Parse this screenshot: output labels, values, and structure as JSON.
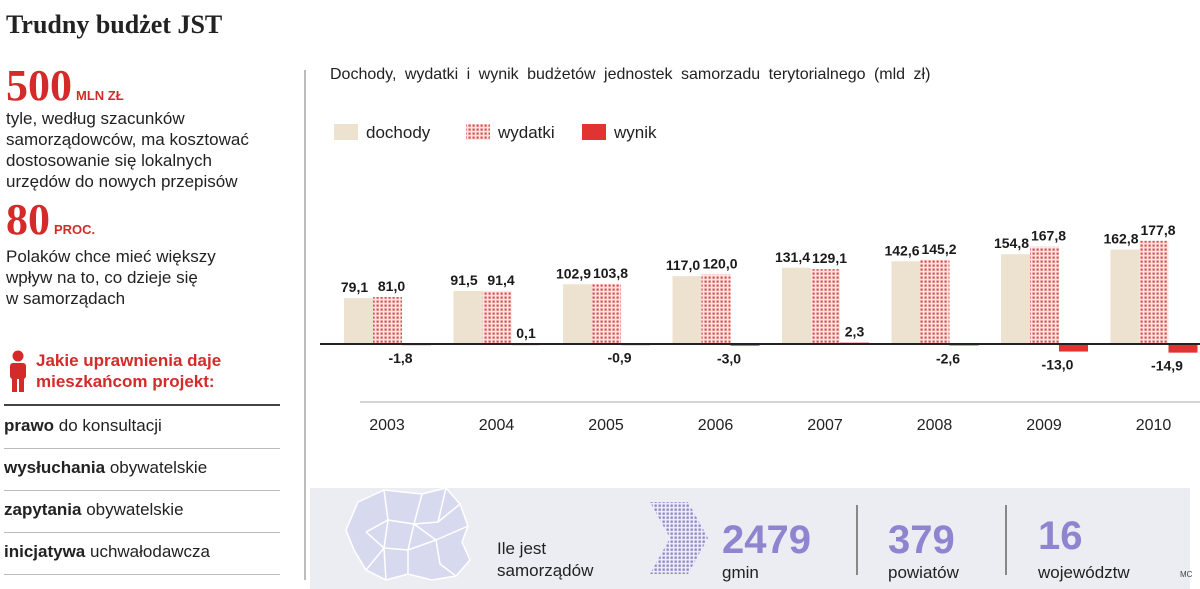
{
  "title": "Trudny budżet JST",
  "stats": [
    {
      "number": "500",
      "unit": "MLN ZŁ",
      "desc": [
        "tyle, według szacunków",
        "samorządowców, ma kosztować",
        "dostosowanie się lokalnych",
        "urzędów do nowych przepisów"
      ]
    },
    {
      "number": "80",
      "unit": "PROC.",
      "desc": [
        "Polaków chce mieć większy",
        "wpływ na to, co dzieje się",
        "w samorządach"
      ]
    }
  ],
  "question": {
    "title_lines": [
      "Jakie uprawnienia daje",
      "mieszkańcom projekt:"
    ],
    "icon": "person-icon",
    "items": [
      {
        "bold": "prawo",
        "rest": " do konsultacji"
      },
      {
        "bold": "wysłuchania",
        "rest": " obywatelskie"
      },
      {
        "bold": "zapytania",
        "rest": " obywatelskie"
      },
      {
        "bold": "inicjatywa",
        "rest": " uchwałodawcza"
      }
    ]
  },
  "colors": {
    "accent": "#d42a2a",
    "dochody": "#ede1cf",
    "wydatki": "#e34b4b",
    "wynik": "#e23333",
    "stat_numbers": "#8e84cf"
  },
  "chart_data": {
    "type": "bar",
    "title": "Dochody, wydatki i wynik budżetów jednostek samorzadu terytorialnego (mld zł)",
    "categories": [
      "2003",
      "2004",
      "2005",
      "2006",
      "2007",
      "2008",
      "2009",
      "2010"
    ],
    "series": [
      {
        "name": "dochody",
        "values": [
          79.1,
          91.5,
          102.9,
          117.0,
          131.4,
          142.6,
          154.8,
          162.8
        ],
        "labels": [
          "79,1",
          "91,5",
          "102,9",
          "117,0",
          "131,4",
          "142,6",
          "154,8",
          "162,8"
        ]
      },
      {
        "name": "wydatki",
        "values": [
          81.0,
          91.4,
          103.8,
          120.0,
          129.1,
          145.2,
          167.8,
          177.8
        ],
        "labels": [
          "81,0",
          "91,4",
          "103,8",
          "120,0",
          "129,1",
          "145,2",
          "167,8",
          "177,8"
        ]
      },
      {
        "name": "wynik",
        "values": [
          -1.8,
          0.1,
          -0.9,
          -3.0,
          2.3,
          -2.6,
          -13.0,
          -14.9
        ],
        "labels": [
          "-1,8",
          "0,1",
          "-0,9",
          "-3,0",
          "2,3",
          "-2,6",
          "-13,0",
          "-14,9"
        ]
      }
    ],
    "ylim": [
      -20,
      180
    ],
    "legend": "top-left",
    "grid": false
  },
  "bottom": {
    "question_lines": [
      "Ile jest",
      "samorządów"
    ],
    "map_icon": "poland-map-icon",
    "items": [
      {
        "number": "2479",
        "label": "gmin"
      },
      {
        "number": "379",
        "label": "powiatów"
      },
      {
        "number": "16",
        "label": "województw"
      }
    ],
    "credit": "MC"
  }
}
